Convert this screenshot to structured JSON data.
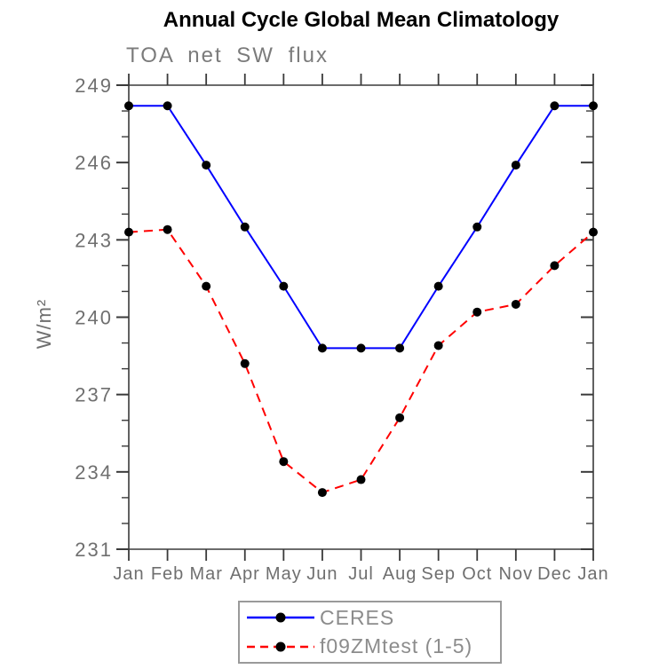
{
  "chart_data": {
    "type": "line",
    "title": "Annual Cycle Global Mean Climatology",
    "subtitle": "TOA net SW flux",
    "ylabel": "W/m²",
    "xlabel": "",
    "categories": [
      "Jan",
      "Feb",
      "Mar",
      "Apr",
      "May",
      "Jun",
      "Jul",
      "Aug",
      "Sep",
      "Oct",
      "Nov",
      "Dec",
      "Jan"
    ],
    "ylim": [
      231,
      249
    ],
    "y_ticks": [
      231,
      234,
      237,
      240,
      243,
      246,
      249
    ],
    "minor_tick_step": 1,
    "grid": false,
    "legend_position": "bottom-center",
    "series": [
      {
        "name": "CERES",
        "color": "#0000ff",
        "style": "solid",
        "marker": "circle",
        "marker_color": "#000000",
        "values": [
          248.2,
          248.2,
          245.9,
          243.5,
          241.2,
          238.8,
          238.8,
          238.8,
          241.2,
          243.5,
          245.9,
          248.2,
          248.2
        ]
      },
      {
        "name": "f09ZMtest (1-5)",
        "color": "#ff0000",
        "style": "dashed",
        "marker": "circle",
        "marker_color": "#000000",
        "values": [
          243.3,
          243.4,
          241.2,
          238.2,
          234.4,
          233.2,
          233.7,
          236.1,
          238.9,
          240.2,
          240.5,
          242.0,
          243.3
        ]
      }
    ],
    "axis_color": "#3a3a3a",
    "tick_label_color": "#6f6f6f"
  }
}
